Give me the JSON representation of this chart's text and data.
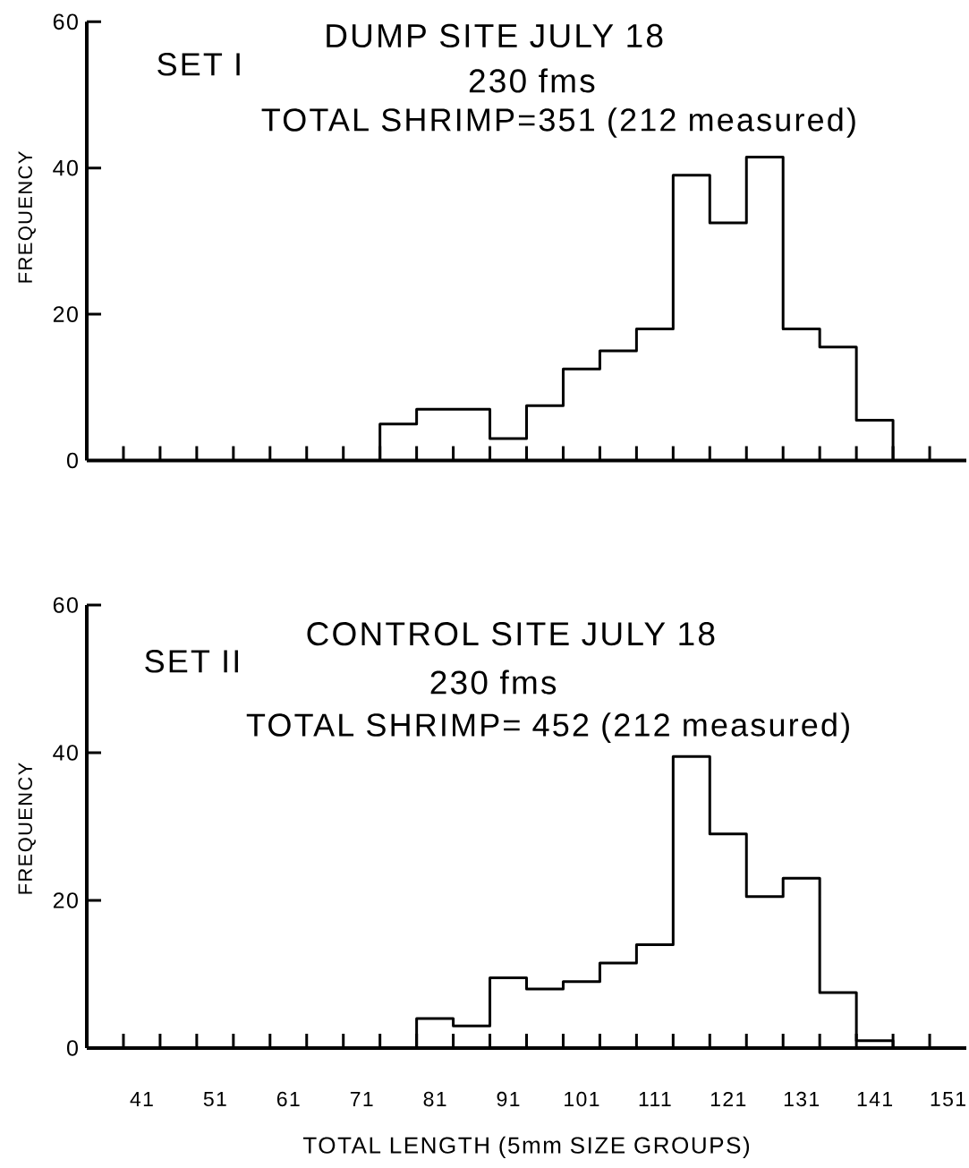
{
  "chart_data": [
    {
      "type": "histogram",
      "title": "DUMP SITE JULY 18",
      "subtitle": "230 fms",
      "ylabel": "FREQUENCY",
      "annotations": [
        "SET I",
        "TOTAL SHRIMP=351 (212 measured)"
      ],
      "bins": [
        73.5,
        78.5,
        83.5,
        88.5,
        93.5,
        98.5,
        103.5,
        108.5,
        113.5,
        118.5,
        123.5,
        128.5,
        133.5,
        138.5,
        143.5
      ],
      "values": [
        5,
        7,
        7,
        3,
        7.5,
        12.5,
        15,
        18,
        39,
        32.5,
        41.5,
        18,
        15.5,
        5.5
      ],
      "color": "#000000",
      "xlim": [
        33.5,
        153.5
      ],
      "ylim": [
        0,
        60
      ],
      "xticks": [
        {
          "value": 38.5,
          "label": null
        },
        41,
        {
          "value": 43.5,
          "label": null
        },
        {
          "value": 48.5,
          "label": null
        },
        51,
        {
          "value": 53.5,
          "label": null
        },
        {
          "value": 58.5,
          "label": null
        },
        61,
        {
          "value": 63.5,
          "label": null
        },
        {
          "value": 68.5,
          "label": null
        },
        71,
        {
          "value": 73.5,
          "label": null
        },
        {
          "value": 78.5,
          "label": null
        },
        81,
        {
          "value": 83.5,
          "label": null
        },
        {
          "value": 88.5,
          "label": null
        },
        91,
        {
          "value": 93.5,
          "label": null
        },
        {
          "value": 98.5,
          "label": null
        },
        101,
        {
          "value": 103.5,
          "label": null
        },
        {
          "value": 108.5,
          "label": null
        },
        111,
        {
          "value": 113.5,
          "label": null
        },
        {
          "value": 118.5,
          "label": null
        },
        121,
        {
          "value": 123.5,
          "label": null
        },
        {
          "value": 128.5,
          "label": null
        },
        131,
        {
          "value": 133.5,
          "label": null
        },
        {
          "value": 138.5,
          "label": null
        },
        141,
        {
          "value": 143.5,
          "label": null
        },
        {
          "value": 148.5,
          "label": null
        },
        151
      ],
      "yticks": [
        0,
        20,
        40,
        60
      ],
      "tick_labels": "y"
    },
    {
      "type": "histogram",
      "title": "CONTROL SITE JULY 18",
      "subtitle": "230 fms",
      "ylabel": "FREQUENCY",
      "xlabel": "TOTAL LENGTH (5mm SIZE GROUPS)",
      "annotations": [
        "SET II",
        "TOTAL SHRIMP= 452 (212 measured)"
      ],
      "bins": [
        78.5,
        83.5,
        88.5,
        93.5,
        98.5,
        103.5,
        108.5,
        113.5,
        118.5,
        123.5,
        128.5,
        133.5,
        138.5,
        143.5
      ],
      "values": [
        4,
        3,
        9.5,
        8,
        9,
        11.5,
        14,
        39.5,
        29,
        20.5,
        23,
        7.5,
        1
      ],
      "color": "#000000",
      "xlim": [
        33.5,
        153.5
      ],
      "ylim": [
        0,
        60
      ],
      "xticks": [
        {
          "value": 38.5,
          "label": null
        },
        41,
        {
          "value": 43.5,
          "label": null
        },
        {
          "value": 48.5,
          "label": null
        },
        51,
        {
          "value": 53.5,
          "label": null
        },
        {
          "value": 58.5,
          "label": null
        },
        61,
        {
          "value": 63.5,
          "label": null
        },
        {
          "value": 68.5,
          "label": null
        },
        71,
        {
          "value": 73.5,
          "label": null
        },
        {
          "value": 78.5,
          "label": null
        },
        81,
        {
          "value": 83.5,
          "label": null
        },
        {
          "value": 88.5,
          "label": null
        },
        91,
        {
          "value": 93.5,
          "label": null
        },
        {
          "value": 98.5,
          "label": null
        },
        101,
        {
          "value": 103.5,
          "label": null
        },
        {
          "value": 108.5,
          "label": null
        },
        111,
        {
          "value": 113.5,
          "label": null
        },
        {
          "value": 118.5,
          "label": null
        },
        121,
        {
          "value": 123.5,
          "label": null
        },
        {
          "value": 128.5,
          "label": null
        },
        131,
        {
          "value": 133.5,
          "label": null
        },
        {
          "value": 138.5,
          "label": null
        },
        141,
        {
          "value": 143.5,
          "label": null
        },
        {
          "value": 148.5,
          "label": null
        },
        151
      ],
      "yticks": [
        0,
        20,
        40,
        60
      ]
    }
  ]
}
